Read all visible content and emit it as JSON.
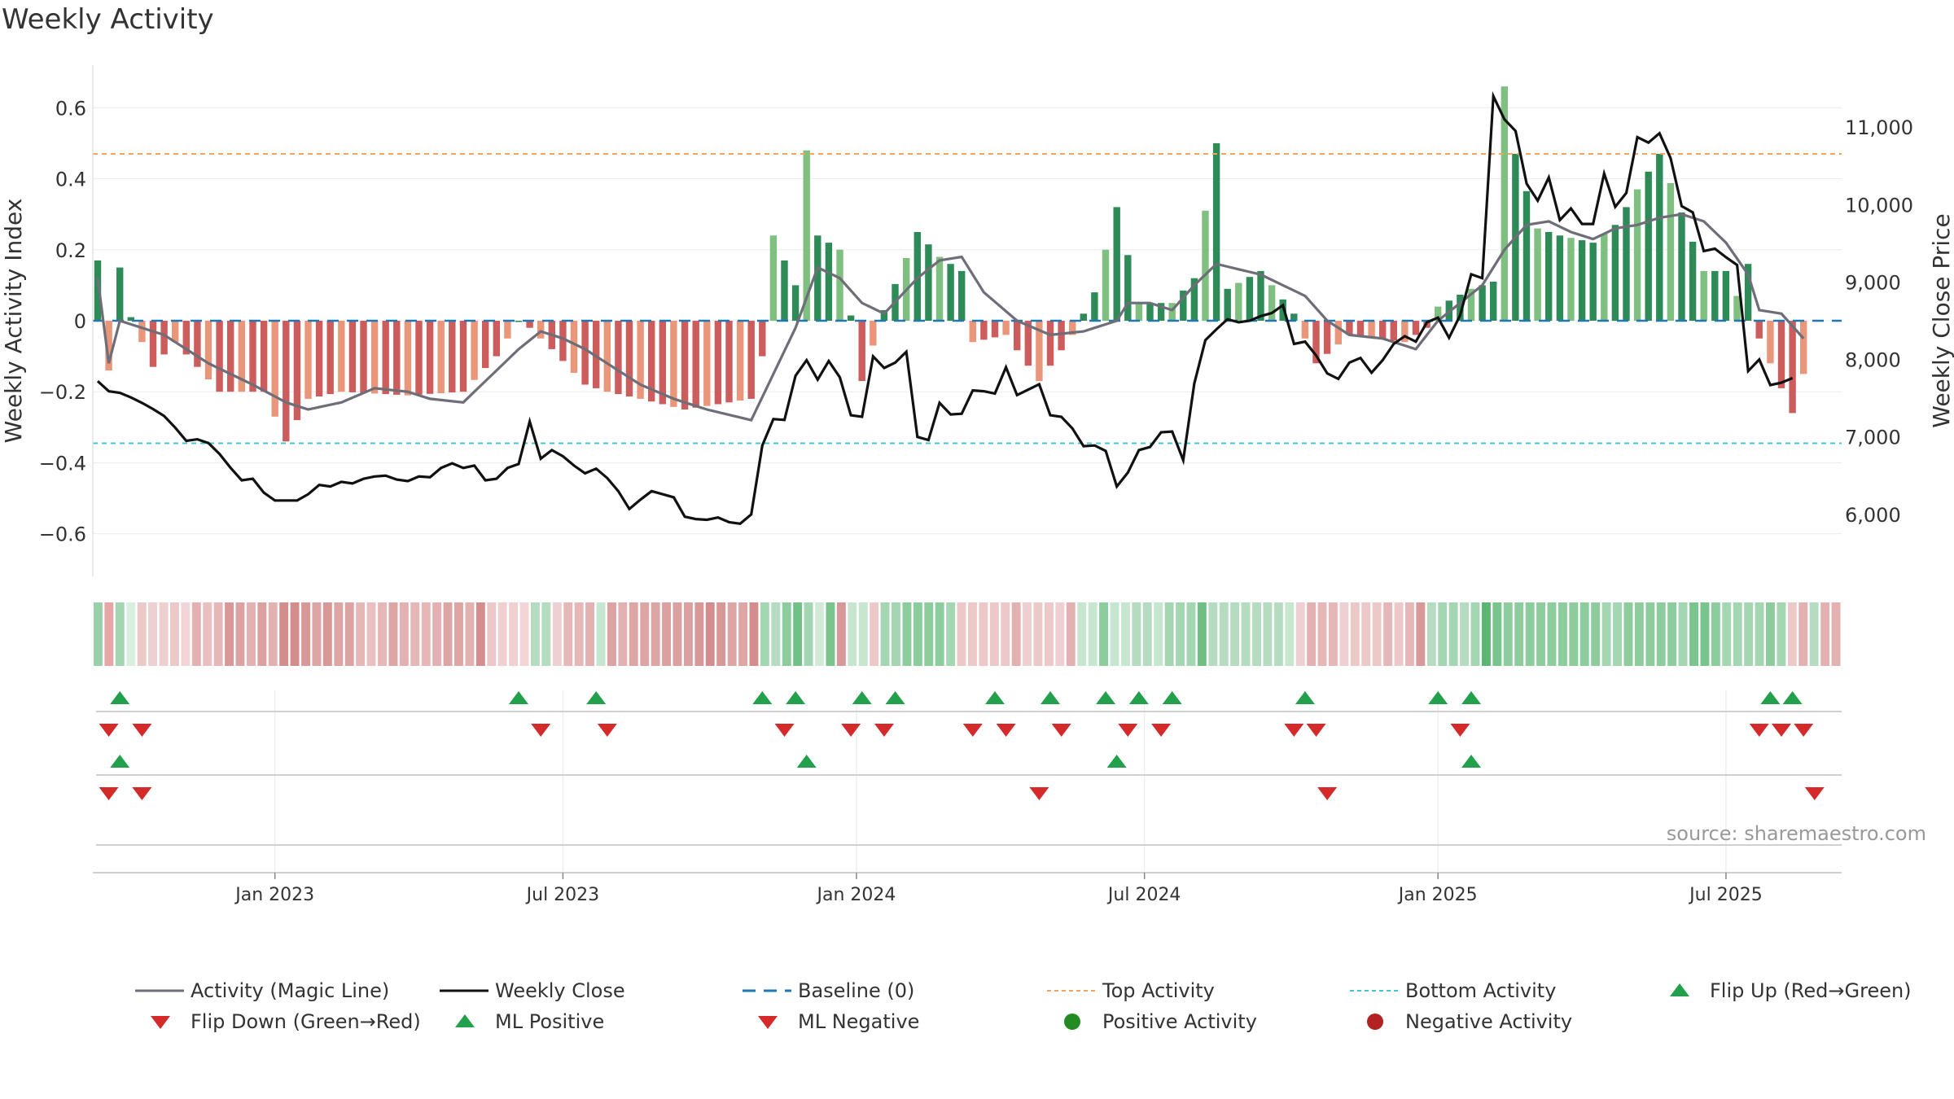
{
  "title": "Weekly Activity",
  "source": "source: sharemaestro.com",
  "chart_data": {
    "type": "bar+line",
    "title": "Weekly Activity",
    "ylabel_left": "Weekly Activity Index",
    "ylabel_right": "Weekly Close Price",
    "ylim_left": [
      -0.72,
      0.72
    ],
    "ylim_right": [
      5200,
      11800
    ],
    "yticks_left": [
      0.6,
      0.4,
      0.2,
      0,
      -0.2,
      -0.4,
      -0.6
    ],
    "ytick_labels_left": [
      "0.6",
      "0.4",
      "0.2",
      "0",
      "−0.2",
      "−0.4",
      "−0.6"
    ],
    "yticks_right": [
      11000,
      10000,
      9000,
      8000,
      7000,
      6000
    ],
    "ytick_labels_right": [
      "11,000",
      "10,000",
      "9,000",
      "8,000",
      "7,000",
      "6,000"
    ],
    "x_week_range": [
      0,
      157
    ],
    "xtick_weeks": [
      16,
      42,
      68.5,
      94.5,
      121,
      147
    ],
    "xtick_labels": [
      "Jan 2023",
      "Jul 2023",
      "Jan 2024",
      "Jul 2024",
      "Jan 2025",
      "Jul 2025"
    ],
    "top_activity": 0.47,
    "bottom_activity": -0.345,
    "baseline": 0,
    "activity_segments": [
      [
        0,
        0.17,
        0.17
      ],
      [
        1,
        -0.14,
        -0.14
      ],
      [
        2,
        0.15,
        0.15
      ],
      [
        3,
        0.01,
        0.01
      ],
      [
        5,
        -0.13,
        -0.13
      ],
      [
        7,
        -0.06,
        -0.06
      ],
      [
        11,
        -0.2,
        -0.22
      ],
      [
        15,
        -0.2,
        -0.14
      ],
      [
        17,
        -0.34,
        -0.38
      ],
      [
        19,
        -0.22,
        -0.3
      ],
      [
        22,
        -0.2,
        -0.26
      ],
      [
        28,
        -0.21,
        -0.24
      ],
      [
        33,
        -0.2,
        -0.34
      ],
      [
        36,
        -0.1,
        -0.08
      ],
      [
        38,
        0.0,
        0.14
      ],
      [
        39,
        -0.02,
        -0.1
      ],
      [
        41,
        -0.08,
        -0.05
      ],
      [
        44,
        -0.18,
        -0.25
      ],
      [
        46,
        -0.2,
        -0.3
      ],
      [
        49,
        -0.22,
        -0.28
      ],
      [
        53,
        -0.25,
        -0.33
      ],
      [
        59,
        -0.22,
        -0.34
      ],
      [
        60,
        -0.1,
        -0.28
      ],
      [
        61,
        0.24,
        0.24
      ],
      [
        63,
        0.1,
        0.16
      ],
      [
        64,
        0.48,
        0.48
      ],
      [
        65,
        0.24,
        0.24
      ],
      [
        67,
        0.2,
        0.2
      ],
      [
        69,
        -0.17,
        -0.17
      ],
      [
        71,
        0.03,
        0.03
      ],
      [
        74,
        0.25,
        0.25
      ],
      [
        76,
        0.18,
        0.22
      ],
      [
        78,
        0.14,
        0.18
      ],
      [
        79,
        -0.06,
        -0.06
      ],
      [
        82,
        -0.04,
        -0.08
      ],
      [
        85,
        -0.17,
        -0.17
      ],
      [
        88,
        -0.04,
        -0.04
      ],
      [
        90,
        0.08,
        0.08
      ],
      [
        92,
        0.32,
        0.32
      ],
      [
        94,
        0.05,
        0.05
      ],
      [
        97,
        0.05,
        0.06
      ],
      [
        99,
        0.12,
        0.16
      ],
      [
        101,
        0.5,
        0.5
      ],
      [
        102,
        0.09,
        0.11
      ],
      [
        105,
        0.14,
        0.1
      ],
      [
        108,
        0.02,
        -0.02
      ],
      [
        110,
        -0.12,
        -0.08
      ],
      [
        113,
        -0.04,
        -0.1
      ],
      [
        118,
        -0.06,
        -0.12
      ],
      [
        120,
        -0.02,
        -0.19
      ],
      [
        121,
        0.04,
        0.04
      ],
      [
        124,
        0.09,
        0.12
      ],
      [
        126,
        0.11,
        0.3
      ],
      [
        127,
        0.66,
        0.66
      ],
      [
        128,
        0.47,
        0.35
      ],
      [
        130,
        0.26,
        0.27
      ],
      [
        132,
        0.24,
        0.2
      ],
      [
        135,
        0.22,
        0.28
      ],
      [
        137,
        0.27,
        0.27
      ],
      [
        141,
        0.47,
        0.2
      ],
      [
        145,
        0.14,
        0.25
      ],
      [
        147,
        0.14,
        0.13
      ],
      [
        148,
        0.07,
        0.1
      ],
      [
        149,
        0.16,
        0.16
      ],
      [
        150,
        -0.05,
        -0.05
      ],
      [
        151,
        -0.12,
        -0.24
      ],
      [
        153,
        -0.26,
        -0.26
      ],
      [
        154,
        -0.15,
        -0.23
      ]
    ],
    "magic_line_segments": [
      [
        0,
        0.12
      ],
      [
        1,
        -0.12
      ],
      [
        2,
        0.0
      ],
      [
        6,
        -0.04
      ],
      [
        10,
        -0.12
      ],
      [
        14,
        -0.18
      ],
      [
        17,
        -0.23
      ],
      [
        19,
        -0.25
      ],
      [
        22,
        -0.23
      ],
      [
        25,
        -0.19
      ],
      [
        28,
        -0.2
      ],
      [
        30,
        -0.22
      ],
      [
        33,
        -0.23
      ],
      [
        35,
        -0.17
      ],
      [
        38,
        -0.08
      ],
      [
        40,
        -0.03
      ],
      [
        42,
        -0.05
      ],
      [
        44,
        -0.08
      ],
      [
        46,
        -0.12
      ],
      [
        49,
        -0.18
      ],
      [
        52,
        -0.22
      ],
      [
        55,
        -0.25
      ],
      [
        59,
        -0.28
      ],
      [
        61,
        -0.15
      ],
      [
        63,
        -0.02
      ],
      [
        65,
        0.15
      ],
      [
        67,
        0.12
      ],
      [
        69,
        0.05
      ],
      [
        71,
        0.02
      ],
      [
        74,
        0.12
      ],
      [
        76,
        0.17
      ],
      [
        78,
        0.18
      ],
      [
        80,
        0.08
      ],
      [
        83,
        0.0
      ],
      [
        86,
        -0.04
      ],
      [
        89,
        -0.03
      ],
      [
        92,
        0.0
      ],
      [
        93,
        0.05
      ],
      [
        95,
        0.05
      ],
      [
        97,
        0.03
      ],
      [
        99,
        0.1
      ],
      [
        101,
        0.16
      ],
      [
        105,
        0.13
      ],
      [
        107,
        0.1
      ],
      [
        109,
        0.07
      ],
      [
        111,
        0.0
      ],
      [
        113,
        -0.04
      ],
      [
        116,
        -0.05
      ],
      [
        119,
        -0.08
      ],
      [
        121,
        0.0
      ],
      [
        123,
        0.05
      ],
      [
        125,
        0.1
      ],
      [
        127,
        0.2
      ],
      [
        129,
        0.27
      ],
      [
        131,
        0.28
      ],
      [
        133,
        0.25
      ],
      [
        135,
        0.23
      ],
      [
        137,
        0.26
      ],
      [
        139,
        0.27
      ],
      [
        141,
        0.29
      ],
      [
        143,
        0.3
      ],
      [
        145,
        0.28
      ],
      [
        147,
        0.22
      ],
      [
        149,
        0.13
      ],
      [
        150,
        0.03
      ],
      [
        152,
        0.02
      ],
      [
        154,
        -0.05
      ]
    ],
    "weekly_close_segments": [
      [
        0,
        7720
      ],
      [
        1,
        7590
      ],
      [
        2,
        7570
      ],
      [
        3,
        7510
      ],
      [
        4,
        7440
      ],
      [
        5,
        7360
      ],
      [
        6,
        7270
      ],
      [
        7,
        7120
      ],
      [
        8,
        6950
      ],
      [
        9,
        6970
      ],
      [
        10,
        6920
      ],
      [
        11,
        6780
      ],
      [
        12,
        6600
      ],
      [
        13,
        6440
      ],
      [
        14,
        6460
      ],
      [
        15,
        6280
      ],
      [
        16,
        6180
      ],
      [
        17,
        6180
      ],
      [
        18,
        6180
      ],
      [
        19,
        6260
      ],
      [
        20,
        6380
      ],
      [
        21,
        6360
      ],
      [
        22,
        6420
      ],
      [
        23,
        6400
      ],
      [
        24,
        6460
      ],
      [
        25,
        6490
      ],
      [
        26,
        6500
      ],
      [
        27,
        6450
      ],
      [
        28,
        6430
      ],
      [
        29,
        6490
      ],
      [
        30,
        6480
      ],
      [
        31,
        6600
      ],
      [
        32,
        6660
      ],
      [
        33,
        6600
      ],
      [
        34,
        6630
      ],
      [
        35,
        6440
      ],
      [
        36,
        6460
      ],
      [
        37,
        6600
      ],
      [
        38,
        6650
      ],
      [
        39,
        7200
      ],
      [
        40,
        6720
      ],
      [
        41,
        6830
      ],
      [
        42,
        6750
      ],
      [
        43,
        6630
      ],
      [
        44,
        6530
      ],
      [
        45,
        6590
      ],
      [
        46,
        6470
      ],
      [
        47,
        6300
      ],
      [
        48,
        6070
      ],
      [
        49,
        6190
      ],
      [
        50,
        6300
      ],
      [
        51,
        6260
      ],
      [
        52,
        6220
      ],
      [
        53,
        5970
      ],
      [
        54,
        5940
      ],
      [
        55,
        5930
      ],
      [
        56,
        5960
      ],
      [
        57,
        5900
      ],
      [
        58,
        5880
      ],
      [
        59,
        6000
      ],
      [
        60,
        6890
      ],
      [
        61,
        7230
      ],
      [
        62,
        7220
      ],
      [
        63,
        7790
      ],
      [
        64,
        7990
      ],
      [
        65,
        7740
      ],
      [
        66,
        7980
      ],
      [
        67,
        7770
      ],
      [
        68,
        7280
      ],
      [
        69,
        7260
      ],
      [
        70,
        8040
      ],
      [
        71,
        7890
      ],
      [
        72,
        7960
      ],
      [
        73,
        8100
      ],
      [
        74,
        7000
      ],
      [
        75,
        6960
      ],
      [
        76,
        7440
      ],
      [
        77,
        7290
      ],
      [
        78,
        7300
      ],
      [
        79,
        7600
      ],
      [
        80,
        7590
      ],
      [
        81,
        7560
      ],
      [
        82,
        7900
      ],
      [
        83,
        7540
      ],
      [
        84,
        7610
      ],
      [
        85,
        7680
      ],
      [
        86,
        7280
      ],
      [
        87,
        7260
      ],
      [
        88,
        7110
      ],
      [
        89,
        6880
      ],
      [
        90,
        6890
      ],
      [
        91,
        6820
      ],
      [
        92,
        6360
      ],
      [
        93,
        6540
      ],
      [
        94,
        6830
      ],
      [
        95,
        6870
      ],
      [
        96,
        7060
      ],
      [
        97,
        7070
      ],
      [
        98,
        6700
      ],
      [
        99,
        7690
      ],
      [
        100,
        8250
      ],
      [
        101,
        8390
      ],
      [
        102,
        8520
      ],
      [
        103,
        8480
      ],
      [
        104,
        8500
      ],
      [
        105,
        8560
      ],
      [
        106,
        8600
      ],
      [
        107,
        8700
      ],
      [
        108,
        8200
      ],
      [
        109,
        8230
      ],
      [
        110,
        8050
      ],
      [
        111,
        7820
      ],
      [
        112,
        7750
      ],
      [
        113,
        7960
      ],
      [
        114,
        8020
      ],
      [
        115,
        7830
      ],
      [
        116,
        7990
      ],
      [
        117,
        8200
      ],
      [
        118,
        8300
      ],
      [
        119,
        8230
      ],
      [
        120,
        8480
      ],
      [
        121,
        8540
      ],
      [
        122,
        8280
      ],
      [
        123,
        8570
      ],
      [
        124,
        9100
      ],
      [
        125,
        9050
      ],
      [
        126,
        11400
      ],
      [
        127,
        11100
      ],
      [
        128,
        10950
      ],
      [
        129,
        10270
      ],
      [
        130,
        10050
      ],
      [
        131,
        10350
      ],
      [
        132,
        9800
      ],
      [
        133,
        9950
      ],
      [
        134,
        9750
      ],
      [
        135,
        9750
      ],
      [
        136,
        10400
      ],
      [
        137,
        9970
      ],
      [
        138,
        10150
      ],
      [
        139,
        10870
      ],
      [
        140,
        10800
      ],
      [
        141,
        10920
      ],
      [
        142,
        10600
      ],
      [
        143,
        9980
      ],
      [
        144,
        9900
      ],
      [
        145,
        9400
      ],
      [
        146,
        9430
      ],
      [
        147,
        9320
      ],
      [
        148,
        9220
      ],
      [
        149,
        7850
      ],
      [
        150,
        8000
      ],
      [
        151,
        7670
      ],
      [
        152,
        7700
      ],
      [
        153,
        7760
      ]
    ],
    "tile_colors": [
      "#98d1a7",
      "#e6a6a6",
      "#a2d5b0",
      "#d8efdf",
      "#ecc9c9",
      "#eed0d0",
      "#eed0d0",
      "#eccaca",
      "#f0d6d6",
      "#e3b1b1",
      "#e9bfbf",
      "#e6b7b7",
      "#d89898",
      "#dda3a3",
      "#e3b1b1",
      "#dba0a0",
      "#e3b1b1",
      "#d48d8d",
      "#d48d8d",
      "#d89898",
      "#dea5a5",
      "#d89898",
      "#dea5a5",
      "#dda2a2",
      "#e6b7b7",
      "#e9bfbf",
      "#e6b7b7",
      "#dea5a5",
      "#e3b1b1",
      "#e6b7b7",
      "#e6b7b7",
      "#e3b1b1",
      "#dea5a5",
      "#dea5a5",
      "#e3b1b1",
      "#d48d8d",
      "#ecc8c8",
      "#eed0d0",
      "#eed0d0",
      "#f0d6d6",
      "#b5dcc0",
      "#b5dcc0",
      "#eed0d0",
      "#e6b7b7",
      "#e6b7b7",
      "#e3b1b1",
      "#c7e6d0",
      "#dda2a2",
      "#e3b1b1",
      "#dea5a5",
      "#dea5a5",
      "#dea5a5",
      "#dba0a0",
      "#dba0a0",
      "#dba0a0",
      "#d89898",
      "#d48d8d",
      "#d89898",
      "#dea5a5",
      "#dea5a5",
      "#d48d8d",
      "#a4d6b1",
      "#b5dcc0",
      "#8ccc9d",
      "#72c087",
      "#a4d6b1",
      "#d2ebd9",
      "#7ac48e",
      "#d89898",
      "#c7e6d0",
      "#c7e6d0",
      "#ecc8c8",
      "#a4d6b1",
      "#a4d6b1",
      "#8ccc9d",
      "#8ccc9d",
      "#8ccc9d",
      "#8ccc9d",
      "#a4d6b1",
      "#ecc8c8",
      "#ecc8c8",
      "#ecc8c8",
      "#ecc8c8",
      "#ecc8c8",
      "#e3b1b1",
      "#eed0d0",
      "#ecc8c8",
      "#ecc8c8",
      "#eed0d0",
      "#e3b1b1",
      "#c7e6d0",
      "#c7e6d0",
      "#8ccc9d",
      "#c7e6d0",
      "#c7e6d0",
      "#b5dcc0",
      "#b5dcc0",
      "#c7e6d0",
      "#a4d6b1",
      "#a4d6b1",
      "#a4d6b1",
      "#6fbf84",
      "#b5dcc0",
      "#b5dcc0",
      "#b5dcc0",
      "#b5dcc0",
      "#b5dcc0",
      "#b5dcc0",
      "#b5dcc0",
      "#c7e6d0",
      "#eed0d0",
      "#e3b1b1",
      "#e6b7b7",
      "#e6b7b7",
      "#eed0d0",
      "#ecc8c8",
      "#ecc8c8",
      "#ecc8c8",
      "#e6b7b7",
      "#ecc8c8",
      "#e6b7b7",
      "#d89898",
      "#b5dcc0",
      "#a4d6b1",
      "#a4d6b1",
      "#b5dcc0",
      "#a4d6b1",
      "#5db574",
      "#7ac48e",
      "#8ccc9d",
      "#8ccc9d",
      "#8ccc9d",
      "#8ccc9d",
      "#8ccc9d",
      "#8ccc9d",
      "#8ccc9d",
      "#8ccc9d",
      "#8ccc9d",
      "#a4d6b1",
      "#a4d6b1",
      "#8ccc9d",
      "#8ccc9d",
      "#8ccc9d",
      "#8ccc9d",
      "#8ccc9d",
      "#a4d6b1",
      "#7ac48e",
      "#7ac48e",
      "#8ccc9d",
      "#a4d6b1",
      "#a4d6b1",
      "#a4d6b1",
      "#a4d6b1",
      "#8ccc9d",
      "#a4d6b1",
      "#ecc8c8",
      "#e3b1b1",
      "#b5dcc0",
      "#e3b1b1",
      "#e3b1b1"
    ],
    "flip_up_weeks": [
      2,
      38,
      45,
      60,
      63,
      69,
      72,
      81,
      86,
      91,
      94,
      97,
      109,
      121,
      124,
      151,
      153
    ],
    "flip_down_weeks": [
      1,
      4,
      40,
      46,
      62,
      68,
      71,
      79,
      82,
      87,
      93,
      96,
      108,
      110,
      123,
      150,
      152,
      154
    ],
    "ml_positive_weeks": [
      2,
      64,
      92,
      124
    ],
    "ml_negative_weeks": [
      1,
      4,
      85,
      111,
      155
    ],
    "legend": {
      "magic_line": "Activity (Magic Line)",
      "weekly_close": "Weekly Close",
      "baseline": "Baseline (0)",
      "top_activity": "Top Activity",
      "bottom_activity": "Bottom Activity",
      "flip_up": "Flip Up (Red→Green)",
      "flip_down": "Flip Down (Green→Red)",
      "ml_positive": "ML Positive",
      "ml_negative": "ML Negative",
      "positive_activity": "Positive Activity",
      "negative_activity": "Negative Activity"
    },
    "colors": {
      "positive_dark": "#2e8b57",
      "positive_light": "#7fbf7f",
      "negative_dark": "#cd5c5c",
      "negative_light": "#e9967a",
      "magic_line": "#6e6e78",
      "weekly_close": "#111111",
      "baseline": "#1f77b4",
      "top_activity": "#f4a460",
      "bottom_activity": "#40c8d0",
      "marker_up": "#22a04b",
      "marker_down": "#d42a2a",
      "dot_positive": "#228b22",
      "dot_negative": "#b22222"
    }
  }
}
